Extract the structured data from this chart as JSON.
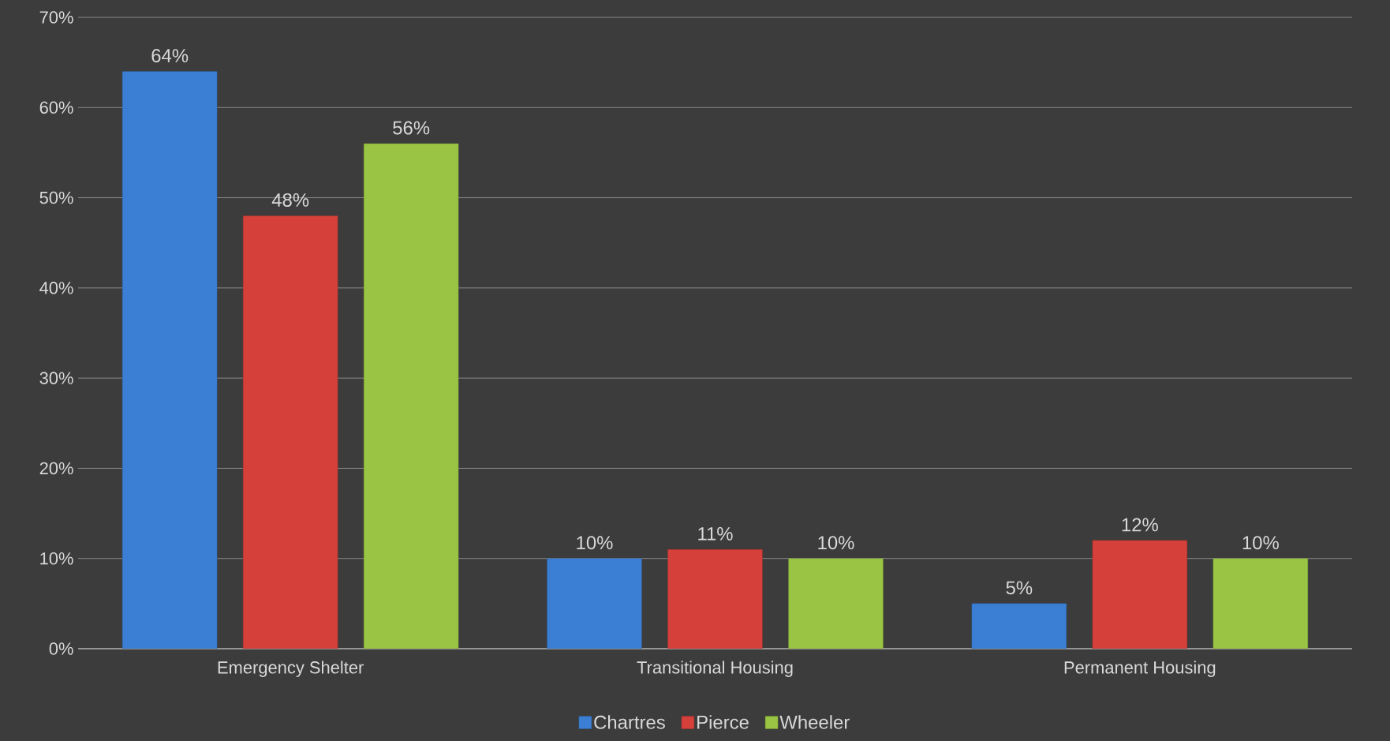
{
  "chart_data": {
    "type": "bar",
    "categories": [
      "Emergency Shelter",
      "Transitional Housing",
      "Permanent Housing"
    ],
    "series": [
      {
        "name": "Chartres",
        "color": "#3b7fd4",
        "values": [
          64,
          10,
          5
        ],
        "value_labels": [
          "64%",
          "10%",
          "5%"
        ]
      },
      {
        "name": "Pierce",
        "color": "#d6403a",
        "values": [
          48,
          11,
          12
        ],
        "value_labels": [
          "48%",
          "11%",
          "12%"
        ]
      },
      {
        "name": "Wheeler",
        "color": "#9ac443",
        "values": [
          56,
          10,
          10
        ],
        "value_labels": [
          "56%",
          "10%",
          "10%"
        ]
      }
    ],
    "ylim": [
      0,
      70
    ],
    "yticks": [
      {
        "value": 0,
        "label": "0%"
      },
      {
        "value": 10,
        "label": "10%"
      },
      {
        "value": 20,
        "label": "20%"
      },
      {
        "value": 30,
        "label": "30%"
      },
      {
        "value": 40,
        "label": "40%"
      },
      {
        "value": 50,
        "label": "50%"
      },
      {
        "value": 60,
        "label": "60%"
      },
      {
        "value": 70,
        "label": "70%"
      }
    ],
    "grid": "y",
    "legend": "bottom"
  }
}
